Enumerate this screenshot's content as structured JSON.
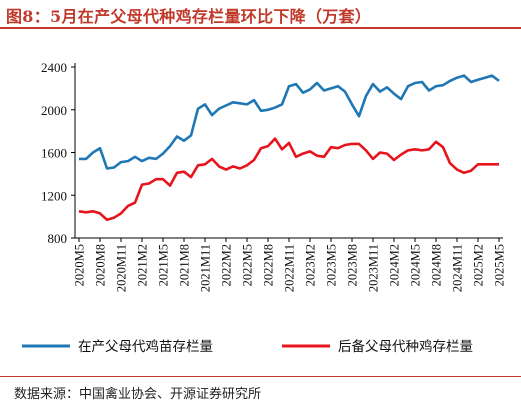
{
  "title": "图8：5月在产父母代种鸡存栏量环比下降（万套）",
  "source": "数据来源：中国禽业协会、开源证券研究所",
  "colors": {
    "series1": "#1f77b4",
    "series2": "#e8141c",
    "accent": "#c0392b"
  },
  "chart_data": {
    "type": "line",
    "title": "图8：5月在产父母代种鸡存栏量环比下降（万套）",
    "ylim": [
      800,
      2400
    ],
    "yticks": [
      800,
      1200,
      1600,
      2000,
      2400
    ],
    "xtick_labels": [
      "2020M5",
      "2020M8",
      "2020M11",
      "2021M2",
      "2021M5",
      "2021M8",
      "2021M11",
      "2022M2",
      "2022M5",
      "2022M8",
      "2022M11",
      "2023M2",
      "2023M5",
      "2023M8",
      "2023M11",
      "2024M2",
      "2024M5",
      "2024M8",
      "2024M11",
      "2025M2",
      "2025M5"
    ],
    "legend_position": "bottom",
    "x": [
      "2020M5",
      "2020M6",
      "2020M7",
      "2020M8",
      "2020M9",
      "2020M10",
      "2020M11",
      "2020M12",
      "2021M1",
      "2021M2",
      "2021M3",
      "2021M4",
      "2021M5",
      "2021M6",
      "2021M7",
      "2021M8",
      "2021M9",
      "2021M10",
      "2021M11",
      "2021M12",
      "2022M1",
      "2022M2",
      "2022M3",
      "2022M4",
      "2022M5",
      "2022M6",
      "2022M7",
      "2022M8",
      "2022M9",
      "2022M10",
      "2022M11",
      "2022M12",
      "2023M1",
      "2023M2",
      "2023M3",
      "2023M4",
      "2023M5",
      "2023M6",
      "2023M7",
      "2023M8",
      "2023M9",
      "2023M10",
      "2023M11",
      "2023M12",
      "2024M1",
      "2024M2",
      "2024M3",
      "2024M4",
      "2024M5",
      "2024M6",
      "2024M7",
      "2024M8",
      "2024M9",
      "2024M10",
      "2024M11",
      "2024M12",
      "2025M1",
      "2025M2",
      "2025M3",
      "2025M4",
      "2025M5"
    ],
    "series": [
      {
        "name": "在产父母代鸡苗存栏量",
        "values": [
          1540,
          1540,
          1600,
          1640,
          1450,
          1460,
          1510,
          1520,
          1560,
          1520,
          1550,
          1540,
          1590,
          1660,
          1750,
          1710,
          1760,
          2010,
          2050,
          1950,
          2010,
          2040,
          2070,
          2060,
          2050,
          2090,
          1990,
          2000,
          2020,
          2050,
          2220,
          2240,
          2160,
          2190,
          2250,
          2180,
          2200,
          2220,
          2170,
          2050,
          1940,
          2130,
          2240,
          2170,
          2210,
          2150,
          2100,
          2220,
          2250,
          2260,
          2180,
          2220,
          2230,
          2270,
          2300,
          2320,
          2260,
          2280,
          2300,
          2320,
          2270
        ]
      },
      {
        "name": "后备父母代种鸡存栏量",
        "values": [
          1050,
          1040,
          1050,
          1030,
          970,
          990,
          1030,
          1100,
          1130,
          1300,
          1310,
          1350,
          1350,
          1290,
          1410,
          1420,
          1370,
          1480,
          1490,
          1540,
          1470,
          1440,
          1470,
          1450,
          1480,
          1530,
          1640,
          1660,
          1730,
          1630,
          1690,
          1560,
          1590,
          1610,
          1570,
          1560,
          1650,
          1640,
          1670,
          1680,
          1680,
          1620,
          1540,
          1600,
          1590,
          1530,
          1580,
          1620,
          1630,
          1620,
          1630,
          1700,
          1650,
          1500,
          1440,
          1410,
          1430,
          1490,
          1490,
          1490,
          1490
        ]
      }
    ]
  }
}
